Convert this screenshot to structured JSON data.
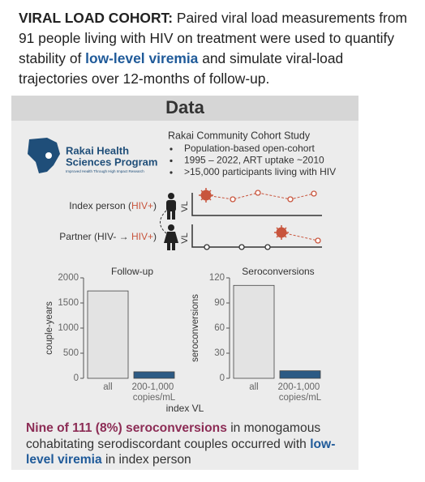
{
  "intro": {
    "lead": "VIRAL LOAD COHORT:",
    "text1": " Paired viral load measurements from 91 people living with HIV on treatment were used to quantify stability of ",
    "highlight": "low-level viremia",
    "text2": " and simulate viral-load trajectories over 12-months of follow-up."
  },
  "panel_title": "Data",
  "logo": {
    "line1": "Rakai Health",
    "line2": "Sciences Program",
    "tagline": "Improved Health Through High Impact Research"
  },
  "study": {
    "title": "Rakai Community Cohort Study",
    "bullets": [
      "Population-based open-cohort",
      "1995 – 2022, ART uptake ~2010",
      ">15,000 participants living with HIV"
    ]
  },
  "diagram": {
    "index_label": "Index person (",
    "index_status": "HIV+",
    "index_close": ")",
    "partner_label": "Partner (HIV- → ",
    "partner_status": "HIV+",
    "partner_close": ")",
    "axis_label": "VL"
  },
  "chart_data": [
    {
      "type": "bar",
      "title": "Follow-up",
      "ylabel": "couple-years",
      "categories": [
        "all",
        "200-1,000 copies/mL"
      ],
      "values": [
        1740,
        130
      ],
      "colors": [
        "#e3e3e3",
        "#2c5a84"
      ],
      "ylim": [
        0,
        2000
      ],
      "yticks": [
        0,
        500,
        1000,
        1500,
        2000
      ]
    },
    {
      "type": "bar",
      "title": "Seroconversions",
      "ylabel": "seroconversions",
      "categories": [
        "all",
        "200-1,000 copies/mL"
      ],
      "values": [
        111,
        9
      ],
      "colors": [
        "#e3e3e3",
        "#2c5a84"
      ],
      "ylim": [
        0,
        120
      ],
      "yticks": [
        0,
        30,
        60,
        90,
        120
      ]
    }
  ],
  "xlabel": "index VL",
  "conclusion": {
    "highlight1": "Nine of 111 (8%) seroconversions",
    "text1": " in monogamous cohabitating serodiscordant couples occurred with ",
    "highlight2": "low-level viremia",
    "text2": " in index person"
  }
}
